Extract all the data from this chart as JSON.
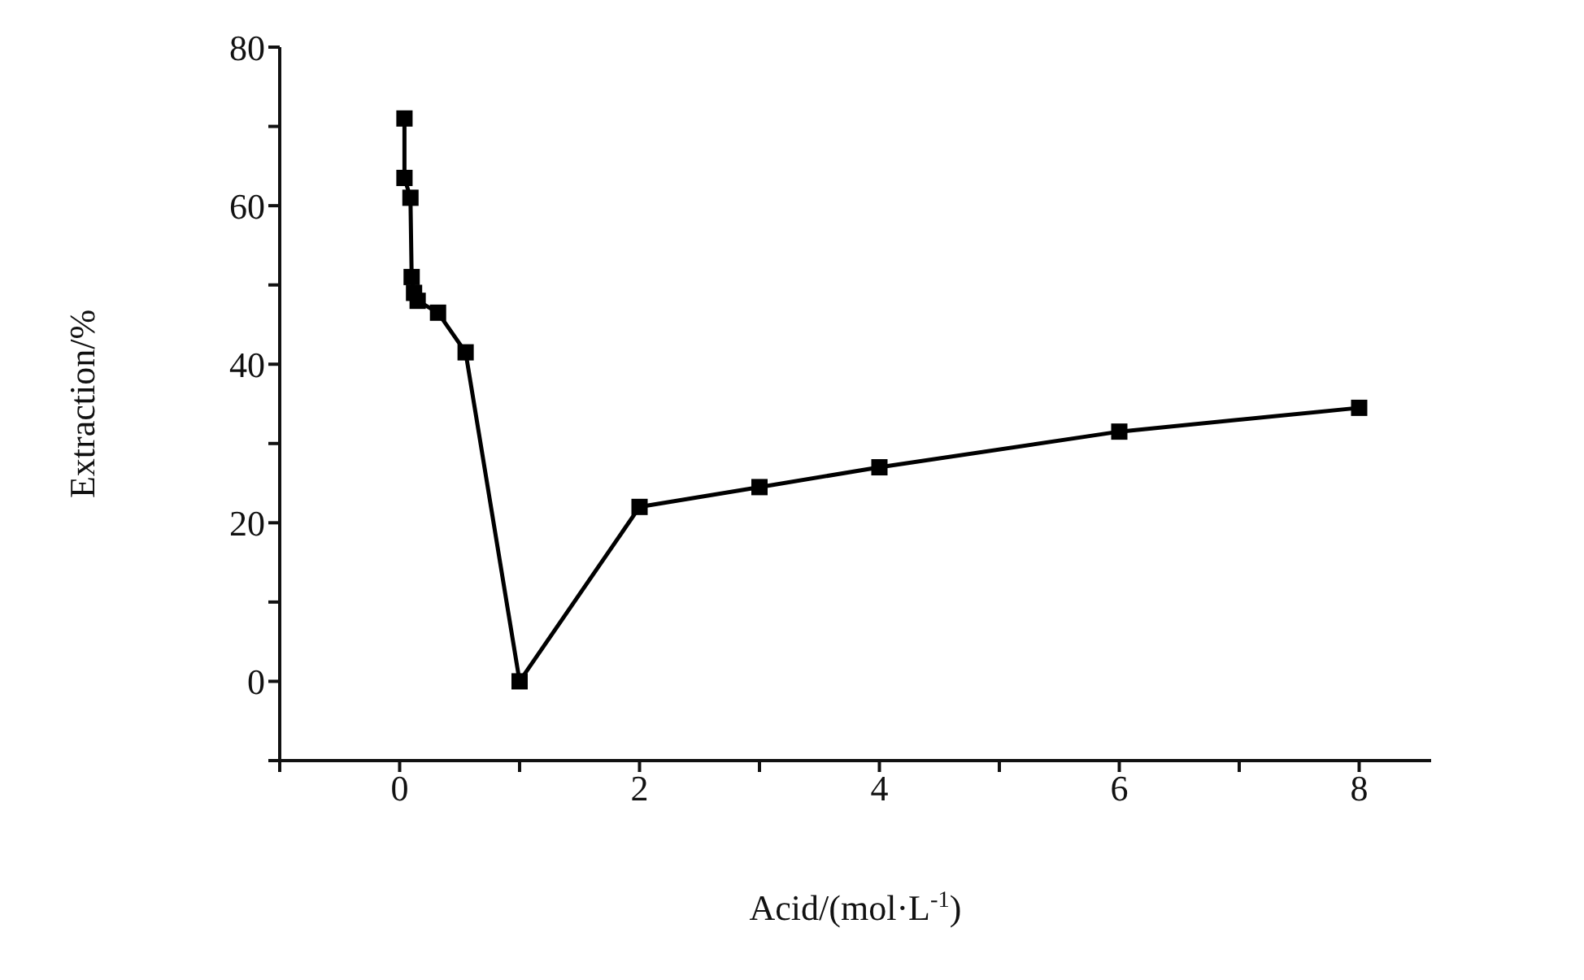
{
  "chart_data": {
    "type": "line",
    "xlabel": "Acid/(mol·L$^{-1}$)",
    "ylabel": "Extraction/%",
    "x": [
      0.04,
      0.04,
      0.09,
      0.1,
      0.12,
      0.15,
      0.32,
      0.55,
      1,
      2,
      3,
      4,
      6,
      8
    ],
    "series": [
      {
        "color": "#000000",
        "values": [
          71,
          63.5,
          61,
          51,
          49,
          48,
          46.5,
          41.5,
          0,
          22,
          24.5,
          27,
          31.5,
          34.5
        ]
      }
    ],
    "xlim": [
      -1,
      8.6
    ],
    "xticks": [
      {
        "value": -1,
        "label": null
      },
      0,
      {
        "value": 1,
        "label": null
      },
      2,
      {
        "value": 3,
        "label": null
      },
      4,
      {
        "value": 5,
        "label": null
      },
      6,
      {
        "value": 7,
        "label": null
      },
      8
    ],
    "ylim": [
      -10,
      80
    ],
    "yticks": [
      {
        "value": -10,
        "label": null
      },
      0,
      {
        "value": 10,
        "label": null
      },
      20,
      {
        "value": 30,
        "label": null
      },
      40,
      {
        "value": 50,
        "label": null
      },
      60,
      {
        "value": 70,
        "label": null
      },
      80
    ],
    "marker": "square",
    "grid": false,
    "legend": false
  }
}
